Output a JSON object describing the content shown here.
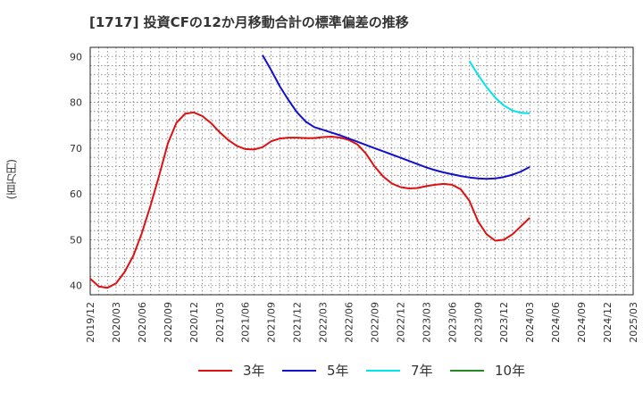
{
  "chart_data": {
    "type": "line",
    "title": "[1717]  投資CFの12か月移動合計の標準偏差の推移",
    "ylabel": "(百万円)",
    "xlabel": "",
    "ylim": [
      38,
      92
    ],
    "yticks": [
      40,
      50,
      60,
      70,
      80,
      90
    ],
    "grid": true,
    "legend_position": "bottom",
    "x": [
      "2019/12",
      "2020/03",
      "2020/06",
      "2020/09",
      "2020/12",
      "2021/03",
      "2021/06",
      "2021/09",
      "2021/12",
      "2022/03",
      "2022/06",
      "2022/09",
      "2022/12",
      "2023/03",
      "2023/06",
      "2023/09",
      "2023/12",
      "2024/03",
      "2024/06",
      "2024/09",
      "2024/12",
      "2025/03"
    ],
    "series": [
      {
        "name": "3年",
        "color": "#dd1111",
        "points": [
          [
            "2019/12",
            41.5
          ],
          [
            "2020/01",
            39.8
          ],
          [
            "2020/02",
            39.5
          ],
          [
            "2020/03",
            40.5
          ],
          [
            "2020/04",
            43.0
          ],
          [
            "2020/05",
            46.5
          ],
          [
            "2020/06",
            51.5
          ],
          [
            "2020/07",
            57.5
          ],
          [
            "2020/08",
            64.0
          ],
          [
            "2020/09",
            71.0
          ],
          [
            "2020/10",
            75.5
          ],
          [
            "2020/11",
            77.5
          ],
          [
            "2020/12",
            77.8
          ],
          [
            "2021/01",
            77.0
          ],
          [
            "2021/02",
            75.5
          ],
          [
            "2021/03",
            73.5
          ],
          [
            "2021/04",
            71.8
          ],
          [
            "2021/05",
            70.5
          ],
          [
            "2021/06",
            69.8
          ],
          [
            "2021/07",
            69.7
          ],
          [
            "2021/08",
            70.2
          ],
          [
            "2021/09",
            71.5
          ],
          [
            "2021/10",
            72.1
          ],
          [
            "2021/11",
            72.3
          ],
          [
            "2021/12",
            72.3
          ],
          [
            "2022/01",
            72.2
          ],
          [
            "2022/02",
            72.2
          ],
          [
            "2022/03",
            72.4
          ],
          [
            "2022/04",
            72.5
          ],
          [
            "2022/05",
            72.3
          ],
          [
            "2022/06",
            71.8
          ],
          [
            "2022/07",
            70.8
          ],
          [
            "2022/08",
            68.8
          ],
          [
            "2022/09",
            66.0
          ],
          [
            "2022/10",
            63.8
          ],
          [
            "2022/11",
            62.3
          ],
          [
            "2022/12",
            61.5
          ],
          [
            "2023/01",
            61.2
          ],
          [
            "2023/02",
            61.3
          ],
          [
            "2023/03",
            61.7
          ],
          [
            "2023/04",
            62.0
          ],
          [
            "2023/05",
            62.2
          ],
          [
            "2023/06",
            62.0
          ],
          [
            "2023/07",
            61.0
          ],
          [
            "2023/08",
            58.5
          ],
          [
            "2023/09",
            54.0
          ],
          [
            "2023/10",
            51.2
          ],
          [
            "2023/11",
            49.8
          ],
          [
            "2023/12",
            50.0
          ],
          [
            "2024/01",
            51.2
          ],
          [
            "2024/02",
            53.0
          ],
          [
            "2024/03",
            54.8
          ]
        ]
      },
      {
        "name": "5年",
        "color": "#1111cc",
        "points": [
          [
            "2021/08",
            90.3
          ],
          [
            "2021/09",
            87.0
          ],
          [
            "2021/10",
            83.5
          ],
          [
            "2021/11",
            80.5
          ],
          [
            "2021/12",
            77.8
          ],
          [
            "2022/01",
            75.8
          ],
          [
            "2022/02",
            74.6
          ],
          [
            "2022/03",
            74.0
          ],
          [
            "2022/04",
            73.4
          ],
          [
            "2022/05",
            72.8
          ],
          [
            "2022/06",
            72.1
          ],
          [
            "2022/07",
            71.4
          ],
          [
            "2022/08",
            70.7
          ],
          [
            "2022/09",
            70.0
          ],
          [
            "2022/10",
            69.3
          ],
          [
            "2022/11",
            68.6
          ],
          [
            "2022/12",
            67.9
          ],
          [
            "2023/01",
            67.2
          ],
          [
            "2023/02",
            66.5
          ],
          [
            "2023/03",
            65.8
          ],
          [
            "2023/04",
            65.2
          ],
          [
            "2023/05",
            64.7
          ],
          [
            "2023/06",
            64.3
          ],
          [
            "2023/07",
            63.9
          ],
          [
            "2023/08",
            63.6
          ],
          [
            "2023/09",
            63.4
          ],
          [
            "2023/10",
            63.3
          ],
          [
            "2023/11",
            63.4
          ],
          [
            "2023/12",
            63.7
          ],
          [
            "2024/01",
            64.2
          ],
          [
            "2024/02",
            64.9
          ],
          [
            "2024/03",
            65.9
          ]
        ]
      },
      {
        "name": "7年",
        "color": "#00e5ee",
        "points": [
          [
            "2023/08",
            89.0
          ],
          [
            "2023/09",
            86.0
          ],
          [
            "2023/10",
            83.3
          ],
          [
            "2023/11",
            81.0
          ],
          [
            "2023/12",
            79.3
          ],
          [
            "2024/01",
            78.2
          ],
          [
            "2024/02",
            77.7
          ],
          [
            "2024/03",
            77.6
          ]
        ]
      },
      {
        "name": "10年",
        "color": "#228b22",
        "points": []
      }
    ]
  }
}
